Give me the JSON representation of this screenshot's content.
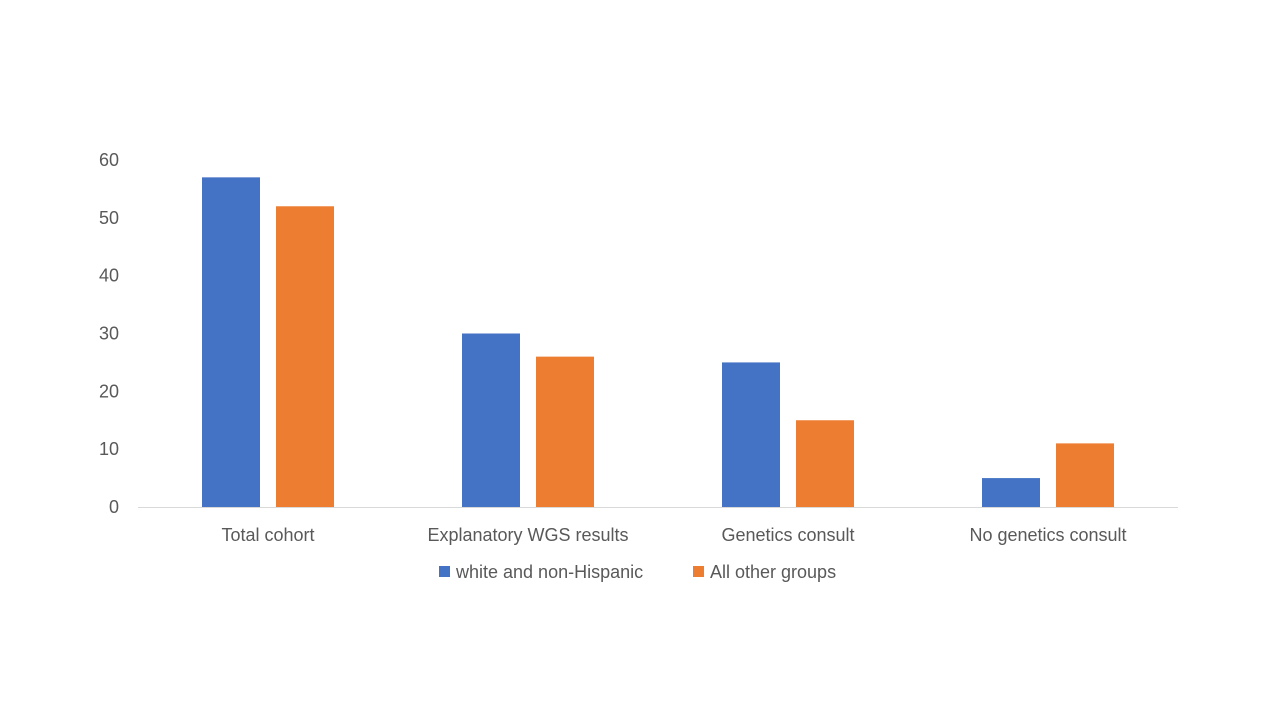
{
  "chart_data": {
    "type": "bar",
    "title": "",
    "xlabel": "",
    "ylabel": "",
    "categories": [
      "Total cohort",
      "Explanatory WGS results",
      "Genetics consult",
      "No genetics consult"
    ],
    "series": [
      {
        "name": "white and non-Hispanic",
        "color": "#4472C4",
        "values": [
          57,
          30,
          25,
          5
        ]
      },
      {
        "name": "All other groups",
        "color": "#ED7D31",
        "values": [
          52,
          26,
          15,
          11
        ]
      }
    ],
    "ylim": [
      0,
      60
    ],
    "yticks": [
      0,
      10,
      20,
      30,
      40,
      50,
      60
    ],
    "grid": false,
    "legend_position": "bottom"
  }
}
